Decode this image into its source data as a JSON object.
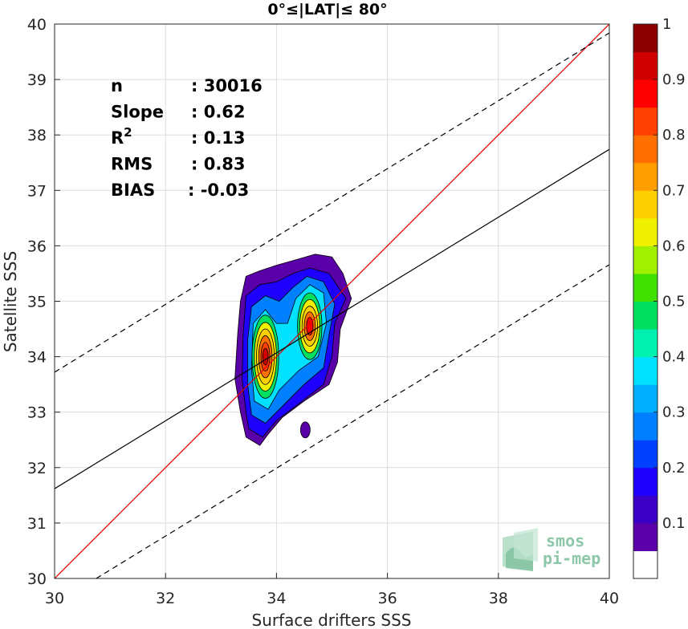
{
  "chart_data": {
    "type": "contour",
    "title": "0°≤|LAT|≤ 80°",
    "xlabel": "Surface drifters SSS",
    "ylabel": "Satellite SSS",
    "xlim": [
      30,
      40
    ],
    "ylim": [
      30,
      40
    ],
    "xticks": [
      "30",
      "32",
      "34",
      "36",
      "38",
      "40"
    ],
    "yticks": [
      "30",
      "31",
      "32",
      "33",
      "34",
      "35",
      "36",
      "37",
      "38",
      "39",
      "40"
    ],
    "grid": true,
    "stats": [
      {
        "label": "n",
        "value": ": 30016"
      },
      {
        "label": "Slope",
        "value": ": 0.62"
      },
      {
        "label": "R",
        "sup": "2",
        "value": ": 0.13"
      },
      {
        "label": "RMS",
        "value": ": 0.83"
      },
      {
        "label": "BIAS",
        "value": ": -0.03"
      }
    ],
    "lines": {
      "identity": {
        "x": [
          30,
          40
        ],
        "y": [
          30,
          40
        ],
        "color": "#e00000"
      },
      "regression": {
        "x": [
          30,
          40
        ],
        "y": [
          31.62,
          37.74
        ],
        "color": "#000000"
      },
      "upper_bound": {
        "x": [
          30,
          40
        ],
        "y": [
          33.72,
          39.84
        ],
        "color": "#000000",
        "style": "dashed"
      },
      "lower_bound": {
        "x": [
          30.75,
          40
        ],
        "y": [
          30,
          35.66
        ],
        "color": "#000000",
        "style": "dashed"
      }
    },
    "density_peaks": [
      {
        "x": 33.8,
        "y": 34.05,
        "level": 0.95
      },
      {
        "x": 34.6,
        "y": 34.5,
        "level": 0.85
      }
    ],
    "colorbar": {
      "ticks": [
        "0.1",
        "0.2",
        "0.3",
        "0.4",
        "0.5",
        "0.6",
        "0.7",
        "0.8",
        "0.9",
        "1"
      ],
      "colors": [
        "#ffffff",
        "#5a00a8",
        "#3a00c8",
        "#1e00ff",
        "#0040ff",
        "#0080ff",
        "#00b0ff",
        "#00e0ff",
        "#00f0b0",
        "#00e060",
        "#40e000",
        "#a0f000",
        "#f0f000",
        "#ffd000",
        "#ffa000",
        "#ff7000",
        "#ff4000",
        "#ff0000",
        "#d00000",
        "#8b0000"
      ]
    }
  },
  "logo": {
    "line1": "smos",
    "line2": "pi-mep"
  }
}
